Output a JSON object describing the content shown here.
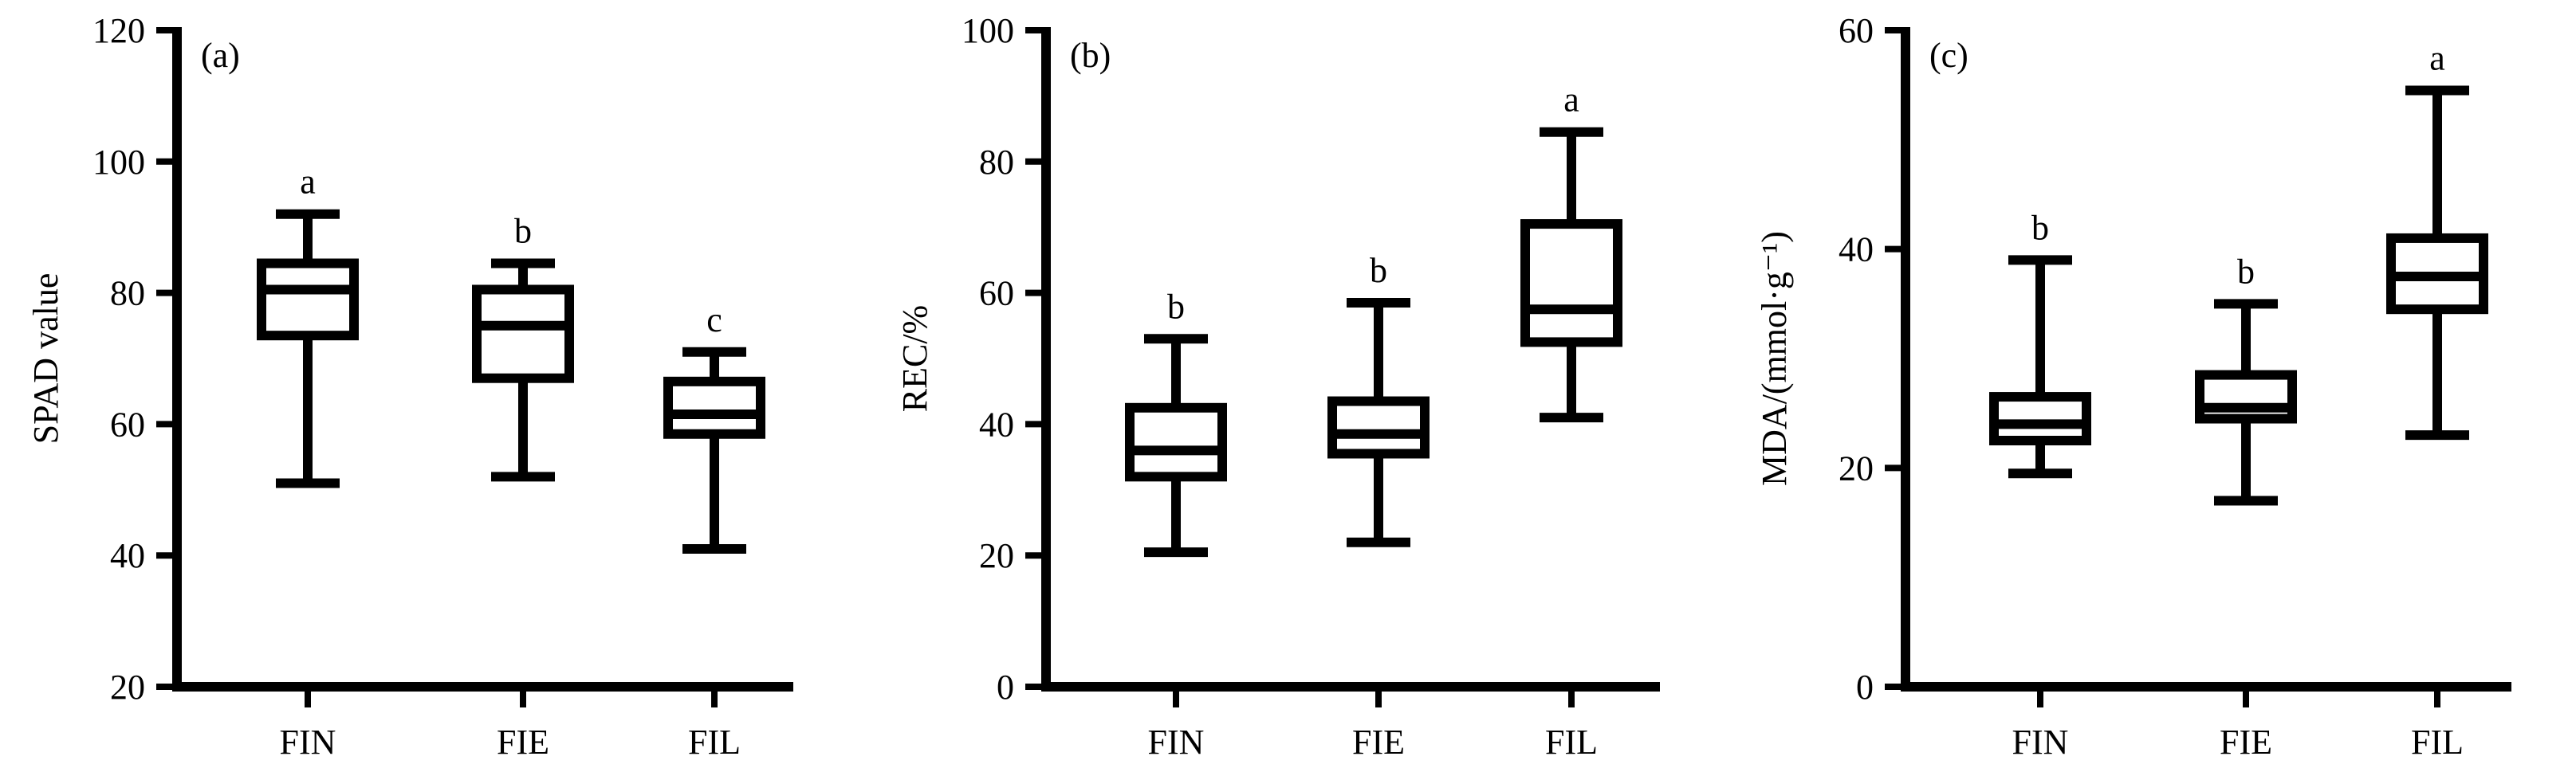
{
  "chart_data": [
    {
      "type": "box",
      "panel_label": "(a)",
      "ylabel": "SPAD value",
      "ylim": [
        20,
        120
      ],
      "yticks": [
        20,
        40,
        60,
        80,
        100,
        120
      ],
      "categories": [
        "FIN",
        "FIE",
        "FIL"
      ],
      "boxes": [
        {
          "min": 51,
          "q1": 73.5,
          "median": 80.5,
          "q3": 84.5,
          "max": 92,
          "letter": "a"
        },
        {
          "min": 52,
          "q1": 67,
          "median": 75,
          "q3": 80.5,
          "max": 84.5,
          "letter": "b"
        },
        {
          "min": 41,
          "q1": 58.5,
          "median": 61.5,
          "q3": 66.5,
          "max": 71,
          "letter": "c"
        }
      ]
    },
    {
      "type": "box",
      "panel_label": "(b)",
      "ylabel": "REC/%",
      "ylim": [
        0,
        100
      ],
      "yticks": [
        0,
        20,
        40,
        60,
        80,
        100
      ],
      "categories": [
        "FIN",
        "FIE",
        "FIL"
      ],
      "boxes": [
        {
          "min": 20.5,
          "q1": 32,
          "median": 36,
          "q3": 42.5,
          "max": 53,
          "letter": "b"
        },
        {
          "min": 22,
          "q1": 35.5,
          "median": 38.5,
          "q3": 43.5,
          "max": 58.5,
          "letter": "b"
        },
        {
          "min": 41,
          "q1": 52.5,
          "median": 57.5,
          "q3": 70.5,
          "max": 84.5,
          "letter": "a"
        }
      ]
    },
    {
      "type": "box",
      "panel_label": "(c)",
      "ylabel": "MDA/(mmol·g⁻¹)",
      "ylim": [
        0,
        60
      ],
      "yticks": [
        0,
        20,
        40,
        60
      ],
      "categories": [
        "FIN",
        "FIE",
        "FIL"
      ],
      "boxes": [
        {
          "min": 19.5,
          "q1": 22.5,
          "median": 24,
          "q3": 26.5,
          "max": 39,
          "letter": "b"
        },
        {
          "min": 17,
          "q1": 24.5,
          "median": 25.5,
          "q3": 28.5,
          "max": 35,
          "letter": "b"
        },
        {
          "min": 23,
          "q1": 34.5,
          "median": 37.5,
          "q3": 41,
          "max": 54.5,
          "letter": "a"
        }
      ]
    }
  ]
}
